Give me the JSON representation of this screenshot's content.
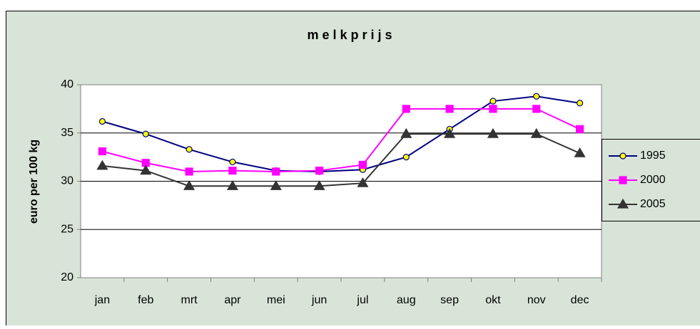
{
  "chart_data": {
    "type": "line",
    "title": "m e l k p r i j s",
    "ylabel": "euro per 100 kg",
    "categories": [
      "jan",
      "feb",
      "mrt",
      "apr",
      "mei",
      "jun",
      "jul",
      "aug",
      "sep",
      "okt",
      "nov",
      "dec"
    ],
    "series": [
      {
        "name": "1995",
        "color": "#000080",
        "marker": "circle",
        "marker_color": "#ffff00",
        "values": [
          36.2,
          34.9,
          33.3,
          32.0,
          31.1,
          31.0,
          31.2,
          32.5,
          35.4,
          38.3,
          38.8,
          38.1
        ]
      },
      {
        "name": "2000",
        "color": "#ff00ff",
        "marker": "square",
        "marker_color": "#ff00ff",
        "values": [
          33.1,
          31.9,
          31.0,
          31.1,
          31.0,
          31.1,
          31.7,
          37.5,
          37.5,
          37.5,
          37.5,
          35.4
        ]
      },
      {
        "name": "2005",
        "color": "#333333",
        "marker": "triangle",
        "marker_color": "#333333",
        "values": [
          31.6,
          31.1,
          29.5,
          29.5,
          29.5,
          29.5,
          29.8,
          34.9,
          34.9,
          34.9,
          34.9,
          32.9
        ]
      }
    ],
    "ylim": [
      20,
      40
    ],
    "yticks": [
      20,
      25,
      30,
      35,
      40
    ],
    "grid": true,
    "legend": "right"
  }
}
